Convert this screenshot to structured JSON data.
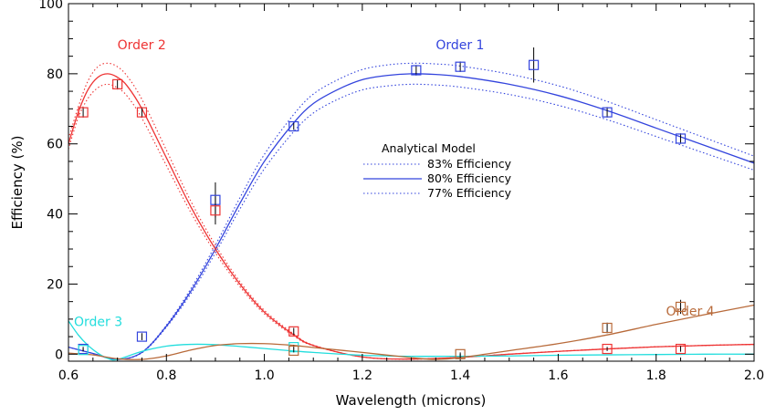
{
  "chart_data": {
    "type": "line",
    "xlabel": "Wavelength (microns)",
    "ylabel": "Efficiency (%)",
    "xlim": [
      0.6,
      2.0
    ],
    "ylim": [
      -2,
      100
    ],
    "x_ticks": [
      0.6,
      0.8,
      1.0,
      1.2,
      1.4,
      1.6,
      1.8,
      2.0
    ],
    "x_tick_labels": [
      "0.6",
      "0.8",
      "1.0",
      "1.2",
      "1.4",
      "1.6",
      "1.8",
      "2.0"
    ],
    "y_ticks": [
      0,
      20,
      40,
      60,
      80,
      100
    ],
    "y_tick_labels": [
      "0",
      "20",
      "40",
      "60",
      "80",
      "100"
    ],
    "grid": false,
    "legend": {
      "title": "Analytical Model",
      "placement": "center",
      "entries": [
        {
          "label": "83% Efficiency",
          "style": "dotted",
          "color": "#3344dd"
        },
        {
          "label": "80% Efficiency",
          "style": "solid",
          "color": "#3344dd"
        },
        {
          "label": "77% Efficiency",
          "style": "dotted",
          "color": "#3344dd"
        }
      ]
    },
    "annotations": [
      {
        "text": "Order 1",
        "color": "#3344dd",
        "x": 1.35,
        "y": 87
      },
      {
        "text": "Order 2",
        "color": "#ee3333",
        "x": 0.7,
        "y": 87
      },
      {
        "text": "Order 3",
        "color": "#22dddd",
        "x": 0.6,
        "y": 8
      },
      {
        "text": "Order 4",
        "color": "#b86a3a",
        "x": 1.82,
        "y": 11
      }
    ],
    "series": [
      {
        "name": "Order 1",
        "color": "#3344dd",
        "model_x": [
          0.6,
          0.65,
          0.7,
          0.75,
          0.8,
          0.85,
          0.9,
          0.95,
          1.0,
          1.06,
          1.1,
          1.15,
          1.2,
          1.25,
          1.3,
          1.35,
          1.4,
          1.5,
          1.6,
          1.7,
          1.8,
          1.9,
          2.0
        ],
        "model_80": [
          2,
          0.2,
          -1.5,
          0.5,
          8,
          18,
          30,
          43,
          55,
          66,
          71.5,
          75.5,
          78.3,
          79.5,
          80,
          79.8,
          79.2,
          77,
          73.8,
          69.5,
          64.5,
          59.5,
          54.5
        ],
        "model_83": [
          2,
          0.2,
          -1.5,
          0.6,
          8.3,
          18.7,
          31.1,
          44.6,
          57,
          68.4,
          74.2,
          78.3,
          81.2,
          82.5,
          83,
          82.8,
          82.2,
          79.9,
          76.6,
          72.1,
          66.9,
          61.7,
          56.5
        ],
        "model_77": [
          2,
          0.2,
          -1.5,
          0.4,
          7.7,
          17.3,
          28.9,
          41.4,
          52.9,
          63.5,
          68.8,
          72.7,
          75.4,
          76.5,
          77,
          76.8,
          76.2,
          74.1,
          71,
          66.9,
          62.1,
          57.3,
          52.5
        ],
        "measured": [
          {
            "x": 0.63,
            "y": 1.5,
            "err": 0.6
          },
          {
            "x": 0.75,
            "y": 5,
            "err": 1
          },
          {
            "x": 0.9,
            "y": 44,
            "err": 5
          },
          {
            "x": 1.06,
            "y": 65,
            "err": 1
          },
          {
            "x": 1.31,
            "y": 81,
            "err": 1.5
          },
          {
            "x": 1.4,
            "y": 82,
            "err": 1.5
          },
          {
            "x": 1.55,
            "y": 82.5,
            "err": 5
          },
          {
            "x": 1.7,
            "y": 69,
            "err": 1.5
          },
          {
            "x": 1.85,
            "y": 61.5,
            "err": 1.5
          }
        ]
      },
      {
        "name": "Order 2",
        "color": "#ee3333",
        "model_x": [
          0.6,
          0.62,
          0.64,
          0.66,
          0.68,
          0.7,
          0.72,
          0.75,
          0.8,
          0.85,
          0.9,
          0.95,
          1.0,
          1.06,
          1.1,
          1.2,
          1.3,
          1.4,
          1.5,
          1.6,
          1.7,
          1.8,
          1.9,
          2.0
        ],
        "model_80": [
          60,
          69,
          75.5,
          79,
          80,
          79,
          76.5,
          70,
          56,
          42,
          30,
          20,
          12,
          5.5,
          2.5,
          -0.8,
          -1.4,
          -0.9,
          0,
          0.8,
          1.5,
          2.1,
          2.5,
          2.8
        ],
        "model_83": [
          61.5,
          70.5,
          78,
          82,
          83,
          82,
          79.3,
          72.7,
          58.2,
          43.6,
          31.1,
          20.7,
          12.5,
          5.8,
          2.6,
          -0.8,
          -1.4,
          -0.9,
          0,
          0.8,
          1.5,
          2.1,
          2.5,
          2.8
        ],
        "model_77": [
          58.5,
          67.5,
          73,
          76,
          77,
          76,
          73.6,
          67.3,
          53.8,
          40.4,
          28.9,
          19.3,
          11.5,
          5.2,
          2.4,
          -0.8,
          -1.4,
          -0.9,
          0,
          0.8,
          1.5,
          2.1,
          2.5,
          2.8
        ],
        "measured": [
          {
            "x": 0.63,
            "y": 69,
            "err": 1.5
          },
          {
            "x": 0.7,
            "y": 77,
            "err": 1.5
          },
          {
            "x": 0.75,
            "y": 69,
            "err": 1.5
          },
          {
            "x": 0.9,
            "y": 41,
            "err": 4
          },
          {
            "x": 1.06,
            "y": 6.5,
            "err": 1
          },
          {
            "x": 1.7,
            "y": 1.5,
            "err": 0.6
          },
          {
            "x": 1.85,
            "y": 1.5,
            "err": 0.8
          }
        ]
      },
      {
        "name": "Order 3",
        "color": "#22dddd",
        "model_x": [
          0.6,
          0.62,
          0.64,
          0.66,
          0.68,
          0.7,
          0.75,
          0.8,
          0.85,
          0.9,
          0.95,
          1.0,
          1.06,
          1.1,
          1.2,
          1.3,
          1.4,
          1.5,
          1.6,
          1.7,
          1.8,
          1.9,
          2.0
        ],
        "model_80": [
          9.5,
          5.5,
          2.5,
          0.3,
          -1.2,
          -1.5,
          0.8,
          2.3,
          2.8,
          2.7,
          2.2,
          1.6,
          0.9,
          0.5,
          -0.3,
          -0.6,
          -0.6,
          -0.5,
          -0.3,
          -0.2,
          -0.1,
          0,
          0
        ],
        "measured": [
          {
            "x": 0.63,
            "y": 1.2,
            "err": 0.4
          },
          {
            "x": 1.06,
            "y": 2,
            "err": 0.6
          }
        ]
      },
      {
        "name": "Order 4",
        "color": "#b86a3a",
        "model_x": [
          0.6,
          0.65,
          0.7,
          0.75,
          0.8,
          0.85,
          0.9,
          0.95,
          1.0,
          1.06,
          1.1,
          1.2,
          1.3,
          1.35,
          1.4,
          1.5,
          1.6,
          1.7,
          1.8,
          1.9,
          2.0
        ],
        "model_80": [
          0.3,
          -0.2,
          -1.3,
          -1.5,
          -0.5,
          1.2,
          2.5,
          3,
          3,
          2.5,
          1.9,
          0.5,
          -1,
          -1.5,
          -1,
          1,
          3,
          5.5,
          8.5,
          11.3,
          14
        ],
        "measured": [
          {
            "x": 1.06,
            "y": 1,
            "err": 0.5
          },
          {
            "x": 1.4,
            "y": 0,
            "err": 0.5
          },
          {
            "x": 1.7,
            "y": 7.5,
            "err": 1.5
          },
          {
            "x": 1.85,
            "y": 13.5,
            "err": 2
          }
        ]
      }
    ]
  }
}
